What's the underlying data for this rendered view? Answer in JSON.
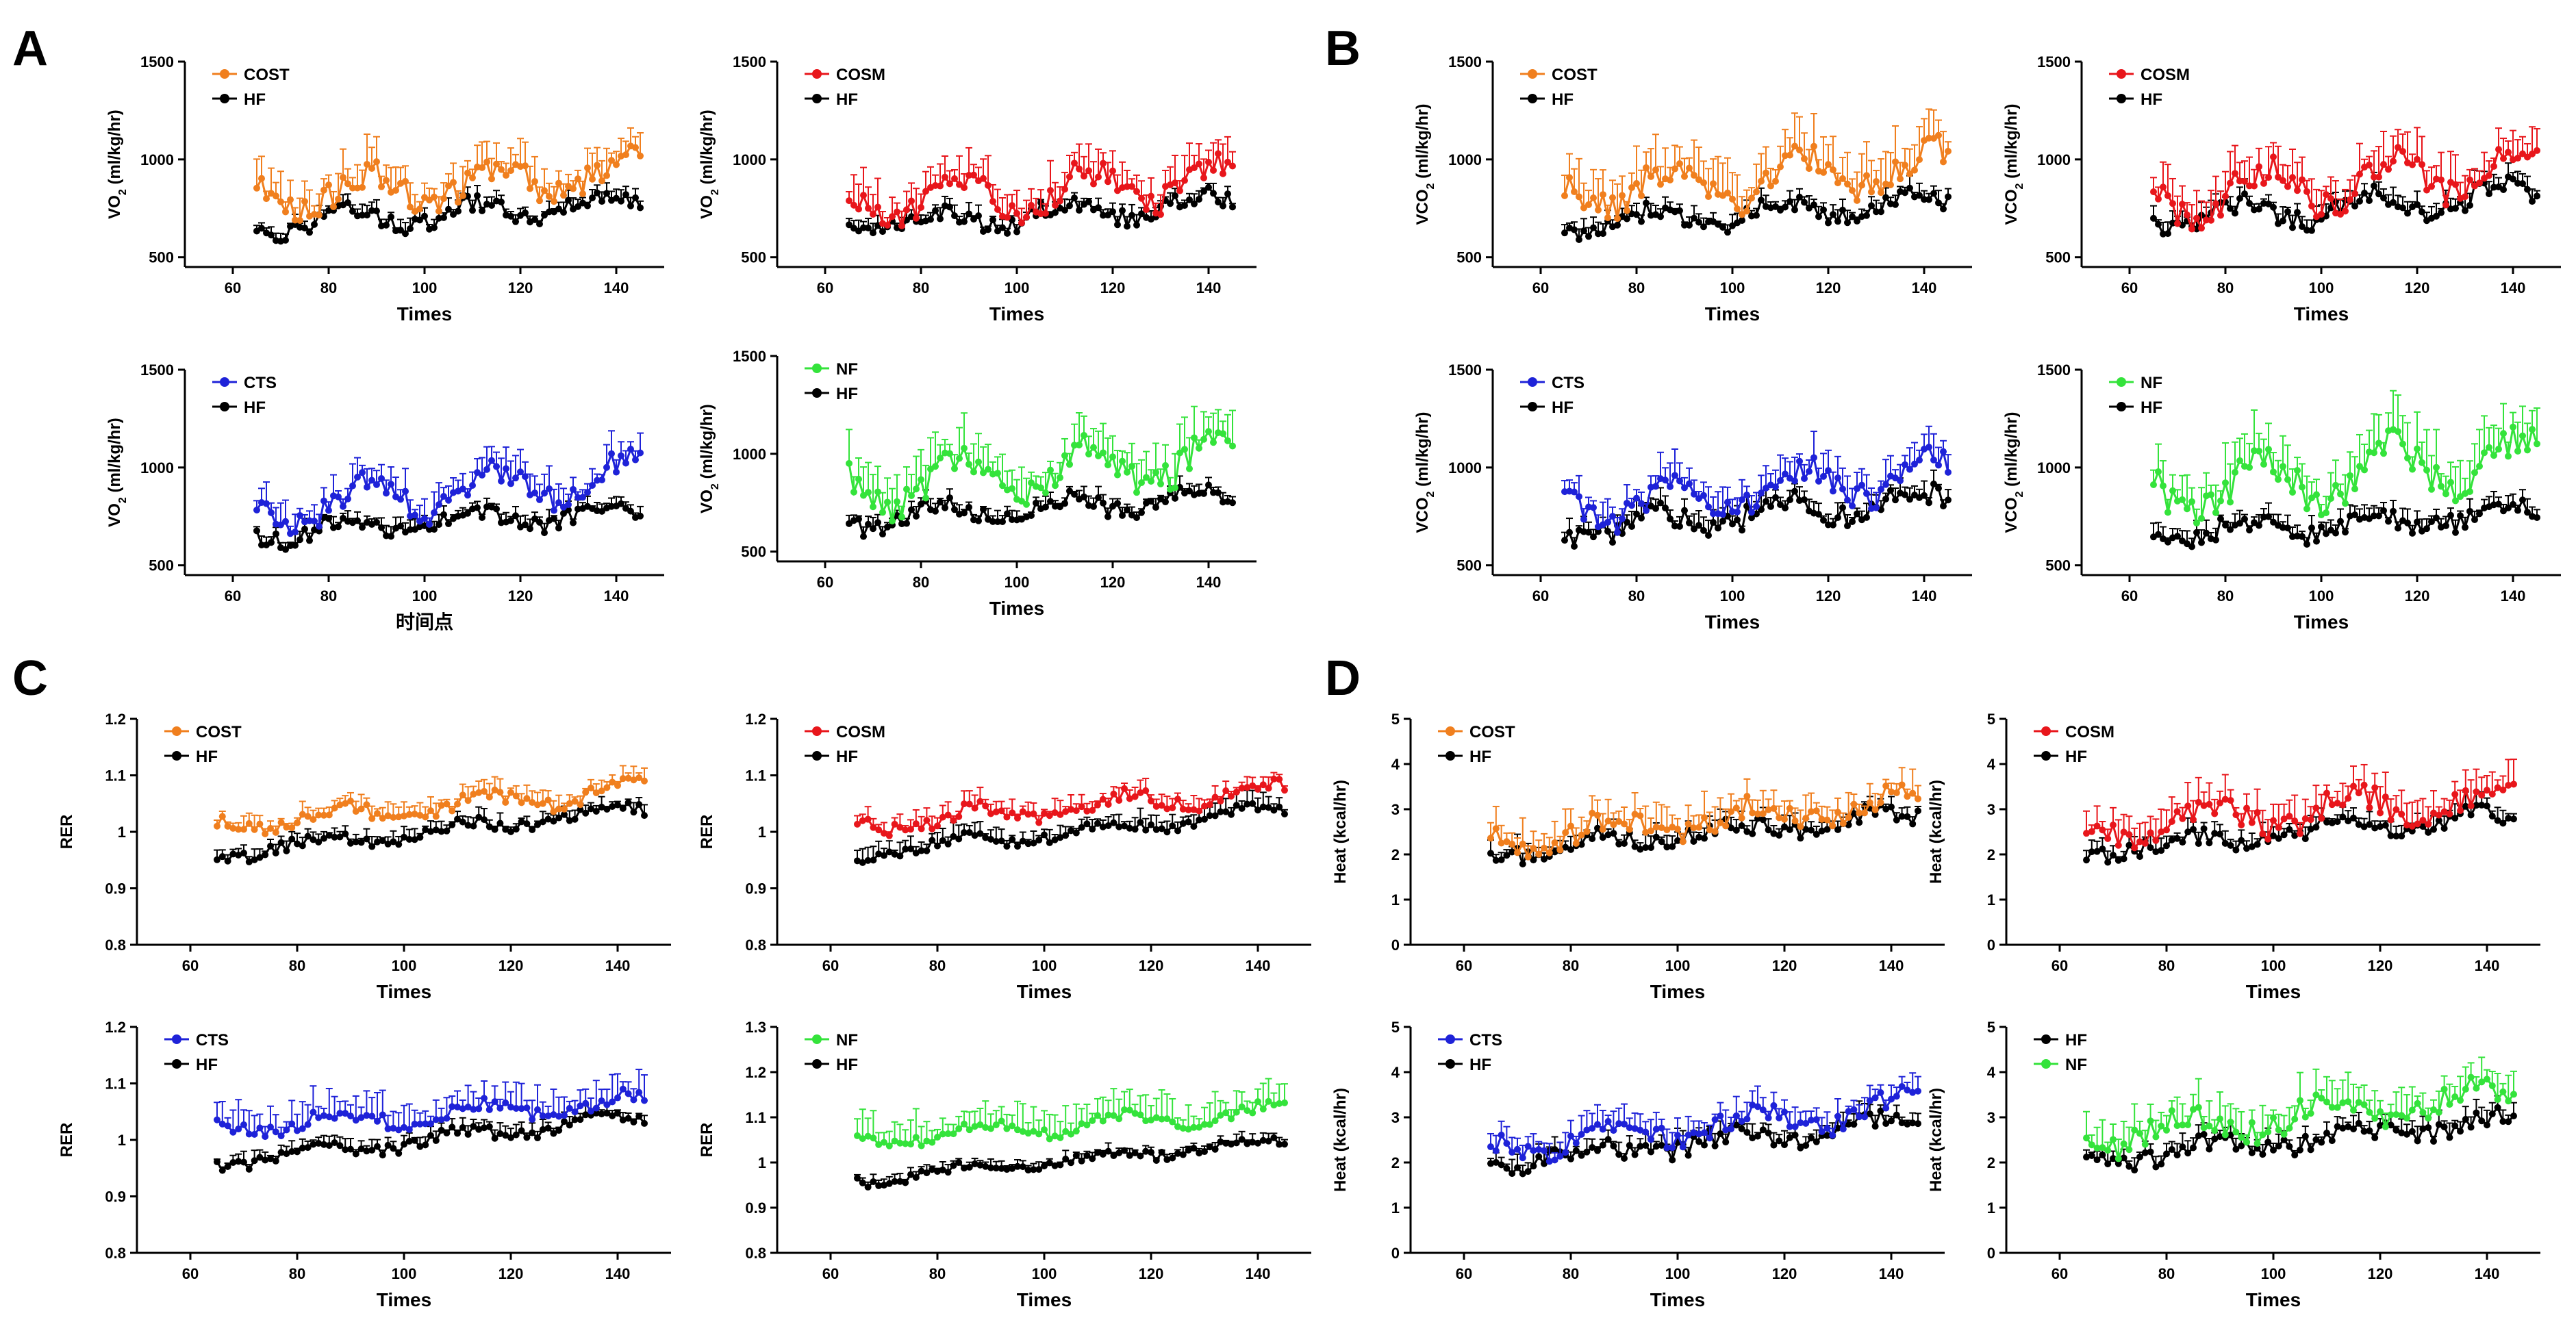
{
  "figure": {
    "panel_letters": [
      "A",
      "B",
      "C",
      "D"
    ]
  },
  "chart_data": [
    {
      "id": "A1",
      "panel": "A",
      "type": "line",
      "series": [
        {
          "name": "COST",
          "color": "#F07F1E",
          "base": 800,
          "amp": 90,
          "trend": 1.6,
          "noise": 70,
          "err": 120
        },
        {
          "name": "HF",
          "color": "#000000",
          "base": 660,
          "amp": 50,
          "trend": 1.5,
          "noise": 45,
          "err": 45
        }
      ],
      "xlabel": "Times",
      "ylabel": "VO",
      "ylabel_sub": "2",
      "ylabel_tail": " (ml/kg/hr)",
      "xlim": [
        50,
        150
      ],
      "ylim": [
        450,
        1500
      ],
      "xticks": [
        60,
        80,
        100,
        120,
        140
      ],
      "yticks": [
        500,
        1000,
        1500
      ]
    },
    {
      "id": "A2",
      "panel": "A",
      "type": "line",
      "series": [
        {
          "name": "COSM",
          "color": "#E8161B",
          "base": 760,
          "amp": 90,
          "trend": 1.7,
          "noise": 70,
          "err": 120
        },
        {
          "name": "HF",
          "color": "#000000",
          "base": 660,
          "amp": 50,
          "trend": 1.5,
          "noise": 45,
          "err": 45
        }
      ],
      "xlabel": "Times",
      "ylabel": "VO",
      "ylabel_sub": "2",
      "ylabel_tail": " (ml/kg/hr)",
      "xlim": [
        50,
        150
      ],
      "ylim": [
        450,
        1500
      ],
      "xticks": [
        60,
        80,
        100,
        120,
        140
      ],
      "yticks": [
        500,
        1000,
        1500
      ]
    },
    {
      "id": "A3",
      "panel": "A",
      "type": "line",
      "series": [
        {
          "name": "CTS",
          "color": "#1E22D8",
          "base": 780,
          "amp": 90,
          "trend": 2.2,
          "noise": 60,
          "err": 90
        },
        {
          "name": "HF",
          "color": "#000000",
          "base": 660,
          "amp": 50,
          "trend": 1.5,
          "noise": 45,
          "err": 45
        }
      ],
      "xlabel": "时间点",
      "ylabel": "VO",
      "ylabel_sub": "2",
      "ylabel_tail": " (ml/kg/hr)",
      "xlim": [
        50,
        150
      ],
      "ylim": [
        450,
        1500
      ],
      "xticks": [
        60,
        80,
        100,
        120,
        140
      ],
      "yticks": [
        500,
        1000,
        1500
      ]
    },
    {
      "id": "A4",
      "panel": "A",
      "type": "line",
      "series": [
        {
          "name": "NF",
          "color": "#34E33B",
          "base": 820,
          "amp": 110,
          "trend": 2.0,
          "noise": 80,
          "err": 140
        },
        {
          "name": "HF",
          "color": "#000000",
          "base": 660,
          "amp": 50,
          "trend": 1.5,
          "noise": 45,
          "err": 45
        }
      ],
      "xlabel": "Times",
      "ylabel": "VO",
      "ylabel_sub": "2",
      "ylabel_tail": " (ml/kg/hr)",
      "xlim": [
        50,
        150
      ],
      "ylim": [
        450,
        1500
      ],
      "xticks": [
        60,
        80,
        100,
        120,
        140
      ],
      "yticks": [
        500,
        1000,
        1500
      ]
    },
    {
      "id": "B1",
      "panel": "B",
      "type": "line",
      "series": [
        {
          "name": "COST",
          "color": "#F07F1E",
          "base": 830,
          "amp": 100,
          "trend": 1.8,
          "noise": 80,
          "err": 150
        },
        {
          "name": "HF",
          "color": "#000000",
          "base": 660,
          "amp": 50,
          "trend": 1.6,
          "noise": 45,
          "err": 50
        }
      ],
      "xlabel": "Times",
      "ylabel": "VCO",
      "ylabel_sub": "2",
      "ylabel_tail": " (ml/kg/hr)",
      "xlim": [
        50,
        150
      ],
      "ylim": [
        450,
        1500
      ],
      "xticks": [
        60,
        80,
        100,
        120,
        140
      ],
      "yticks": [
        500,
        1000,
        1500
      ]
    },
    {
      "id": "B2",
      "panel": "B",
      "type": "line",
      "series": [
        {
          "name": "COSM",
          "color": "#E8161B",
          "base": 800,
          "amp": 110,
          "trend": 1.9,
          "noise": 80,
          "err": 130
        },
        {
          "name": "HF",
          "color": "#000000",
          "base": 680,
          "amp": 60,
          "trend": 1.9,
          "noise": 55,
          "err": 60
        }
      ],
      "xlabel": "Times",
      "ylabel": "VCO",
      "ylabel_sub": "2",
      "ylabel_tail": " (ml/kg/hr)",
      "xlim": [
        50,
        150
      ],
      "ylim": [
        450,
        1500
      ],
      "xticks": [
        60,
        80,
        100,
        120,
        140
      ],
      "yticks": [
        500,
        1000,
        1500
      ]
    },
    {
      "id": "B3",
      "panel": "B",
      "type": "line",
      "series": [
        {
          "name": "CTS",
          "color": "#1E22D8",
          "base": 790,
          "amp": 90,
          "trend": 2.3,
          "noise": 70,
          "err": 110
        },
        {
          "name": "HF",
          "color": "#000000",
          "base": 680,
          "amp": 60,
          "trend": 2.0,
          "noise": 60,
          "err": 60
        }
      ],
      "xlabel": "Times",
      "ylabel": "VCO",
      "ylabel_sub": "2",
      "ylabel_tail": " (ml/kg/hr)",
      "xlim": [
        50,
        150
      ],
      "ylim": [
        450,
        1500
      ],
      "xticks": [
        60,
        80,
        100,
        120,
        140
      ],
      "yticks": [
        500,
        1000,
        1500
      ]
    },
    {
      "id": "B4",
      "panel": "B",
      "type": "line",
      "series": [
        {
          "name": "NF",
          "color": "#34E33B",
          "base": 860,
          "amp": 130,
          "trend": 2.4,
          "noise": 90,
          "err": 160
        },
        {
          "name": "HF",
          "color": "#000000",
          "base": 650,
          "amp": 50,
          "trend": 1.5,
          "noise": 55,
          "err": 55
        }
      ],
      "xlabel": "Times",
      "ylabel": "VCO",
      "ylabel_sub": "2",
      "ylabel_tail": " (ml/kg/hr)",
      "xlim": [
        50,
        150
      ],
      "ylim": [
        450,
        1500
      ],
      "xticks": [
        60,
        80,
        100,
        120,
        140
      ],
      "yticks": [
        500,
        1000,
        1500
      ]
    },
    {
      "id": "C1",
      "panel": "C",
      "type": "line",
      "series": [
        {
          "name": "COST",
          "color": "#F07F1E",
          "base": 1.01,
          "amp": 0.015,
          "trend": 0.0008,
          "noise": 0.012,
          "err": 0.02
        },
        {
          "name": "HF",
          "color": "#000000",
          "base": 0.96,
          "amp": 0.01,
          "trend": 0.001,
          "noise": 0.01,
          "err": 0.015
        }
      ],
      "xlabel": "Times",
      "ylabel": "RER",
      "ylabel_sub": "",
      "ylabel_tail": "",
      "xlim": [
        50,
        150
      ],
      "ylim": [
        0.8,
        1.2
      ],
      "xticks": [
        60,
        80,
        100,
        120,
        140
      ],
      "yticks": [
        0.8,
        0.9,
        1.0,
        1.1,
        1.2
      ]
    },
    {
      "id": "C2",
      "panel": "C",
      "type": "line",
      "series": [
        {
          "name": "COSM",
          "color": "#E8161B",
          "base": 1.01,
          "amp": 0.015,
          "trend": 0.0008,
          "noise": 0.012,
          "err": 0.02
        },
        {
          "name": "HF",
          "color": "#000000",
          "base": 0.96,
          "amp": 0.01,
          "trend": 0.001,
          "noise": 0.01,
          "err": 0.02
        }
      ],
      "xlabel": "Times",
      "ylabel": "RER",
      "ylabel_sub": "",
      "ylabel_tail": "",
      "xlim": [
        50,
        150
      ],
      "ylim": [
        0.8,
        1.2
      ],
      "xticks": [
        60,
        80,
        100,
        120,
        140
      ],
      "yticks": [
        0.8,
        0.9,
        1.0,
        1.1,
        1.2
      ]
    },
    {
      "id": "C3",
      "panel": "C",
      "type": "line",
      "series": [
        {
          "name": "CTS",
          "color": "#1E22D8",
          "base": 1.02,
          "amp": 0.015,
          "trend": 0.0006,
          "noise": 0.012,
          "err": 0.04
        },
        {
          "name": "HF",
          "color": "#000000",
          "base": 0.96,
          "amp": 0.01,
          "trend": 0.001,
          "noise": 0.01,
          "err": 0.015
        }
      ],
      "xlabel": "Times",
      "ylabel": "RER",
      "ylabel_sub": "",
      "ylabel_tail": "",
      "xlim": [
        50,
        150
      ],
      "ylim": [
        0.8,
        1.2
      ],
      "xticks": [
        60,
        80,
        100,
        120,
        140
      ],
      "yticks": [
        0.8,
        0.9,
        1.0,
        1.1,
        1.2
      ]
    },
    {
      "id": "C4",
      "panel": "C",
      "type": "line",
      "series": [
        {
          "name": "NF",
          "color": "#34E33B",
          "base": 1.05,
          "amp": 0.015,
          "trend": 0.0008,
          "noise": 0.012,
          "err": 0.05
        },
        {
          "name": "HF",
          "color": "#000000",
          "base": 0.96,
          "amp": 0.01,
          "trend": 0.0011,
          "noise": 0.01,
          "err": 0.015
        }
      ],
      "xlabel": "Times",
      "ylabel": "RER",
      "ylabel_sub": "",
      "ylabel_tail": "",
      "xlim": [
        50,
        150
      ],
      "ylim": [
        0.8,
        1.3
      ],
      "xticks": [
        60,
        80,
        100,
        120,
        140
      ],
      "yticks": [
        0.8,
        0.9,
        1.0,
        1.1,
        1.2,
        1.3
      ]
    },
    {
      "id": "D1",
      "panel": "D",
      "type": "line",
      "series": [
        {
          "name": "COST",
          "color": "#F07F1E",
          "base": 2.3,
          "amp": 0.25,
          "trend": 0.011,
          "noise": 0.25,
          "err": 0.45
        },
        {
          "name": "HF",
          "color": "#000000",
          "base": 2.05,
          "amp": 0.15,
          "trend": 0.01,
          "noise": 0.2,
          "err": 0.25
        }
      ],
      "xlabel": "Times",
      "ylabel": "Heat (kcal/hr)",
      "ylabel_sub": "",
      "ylabel_tail": "",
      "xlim": [
        50,
        150
      ],
      "ylim": [
        0,
        5
      ],
      "xticks": [
        60,
        80,
        100,
        120,
        140
      ],
      "yticks": [
        0,
        1,
        2,
        3,
        4,
        5
      ]
    },
    {
      "id": "D2",
      "panel": "D",
      "type": "line",
      "series": [
        {
          "name": "COSM",
          "color": "#E8161B",
          "base": 2.5,
          "amp": 0.3,
          "trend": 0.01,
          "noise": 0.28,
          "err": 0.45
        },
        {
          "name": "HF",
          "color": "#000000",
          "base": 2.05,
          "amp": 0.15,
          "trend": 0.01,
          "noise": 0.2,
          "err": 0.25
        }
      ],
      "xlabel": "Times",
      "ylabel": "Heat (kcal/hr)",
      "ylabel_sub": "",
      "ylabel_tail": "",
      "xlim": [
        50,
        150
      ],
      "ylim": [
        0,
        5
      ],
      "xticks": [
        60,
        80,
        100,
        120,
        140
      ],
      "yticks": [
        0,
        1,
        2,
        3,
        4,
        5
      ]
    },
    {
      "id": "D3",
      "panel": "D",
      "type": "line",
      "series": [
        {
          "name": "CTS",
          "color": "#1E22D8",
          "base": 2.35,
          "amp": 0.25,
          "trend": 0.011,
          "noise": 0.25,
          "err": 0.35
        },
        {
          "name": "HF",
          "color": "#000000",
          "base": 2.0,
          "amp": 0.15,
          "trend": 0.011,
          "noise": 0.2,
          "err": 0.25
        }
      ],
      "xlabel": "Times",
      "ylabel": "Heat (kcal/hr)",
      "ylabel_sub": "",
      "ylabel_tail": "",
      "xlim": [
        50,
        150
      ],
      "ylim": [
        0,
        5
      ],
      "xticks": [
        60,
        80,
        100,
        120,
        140
      ],
      "yticks": [
        0,
        1,
        2,
        3,
        4,
        5
      ]
    },
    {
      "id": "D4",
      "panel": "D",
      "type": "line",
      "series": [
        {
          "name": "HF",
          "color": "#000000",
          "base": 2.05,
          "amp": 0.15,
          "trend": 0.011,
          "noise": 0.2,
          "err": 0.25
        },
        {
          "name": "NF",
          "color": "#34E33B",
          "base": 2.55,
          "amp": 0.3,
          "trend": 0.012,
          "noise": 0.28,
          "err": 0.5
        }
      ],
      "xlabel": "Times",
      "ylabel": "Heat (kcal/hr)",
      "ylabel_sub": "",
      "ylabel_tail": "",
      "xlim": [
        50,
        150
      ],
      "ylim": [
        0,
        5
      ],
      "xticks": [
        60,
        80,
        100,
        120,
        140
      ],
      "yticks": [
        0,
        1,
        2,
        3,
        4,
        5
      ]
    }
  ]
}
